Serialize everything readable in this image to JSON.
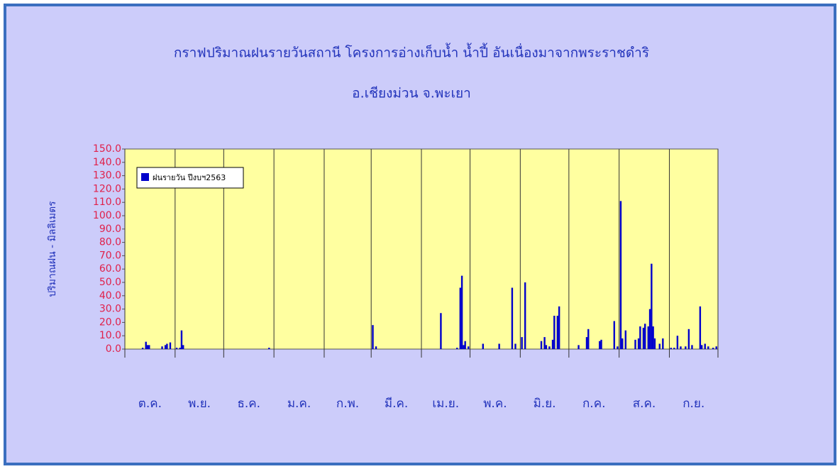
{
  "chart_data": {
    "type": "bar",
    "title": "กราฟปริมาณฝนรายวันสถานี โครงการอ่างเก็บน้ำ น้ำปี้ อันเนื่องมาจากพระราชดำริ",
    "subtitle": "อ.เชียงม่วน จ.พะเยา",
    "y_label": "ปริมาณฝน - มิลลิเมตร",
    "categories": [
      "ต.ค.",
      "พ.ย.",
      "ธ.ค.",
      "ม.ค.",
      "ก.พ.",
      "มี.ค.",
      "เม.ย.",
      "พ.ค.",
      "มิ.ย.",
      "ก.ค.",
      "ส.ค.",
      "ก.ย."
    ],
    "xlim": [
      0,
      366
    ],
    "xticks": [
      0,
      31,
      61,
      92,
      123,
      152,
      183,
      213,
      244,
      274,
      305,
      336,
      366
    ],
    "series": [
      {
        "name": "ฝนรายวัน ปีงบฯ2563",
        "color": "#0000cc",
        "x": [
          11,
          13,
          14,
          15,
          23,
          25,
          26,
          28,
          32,
          34,
          35,
          36,
          89,
          153,
          155,
          195,
          205,
          207,
          208,
          209,
          210,
          212,
          221,
          231,
          239,
          241,
          245,
          247,
          257,
          259,
          260,
          262,
          264,
          265,
          267,
          268,
          280,
          285,
          286,
          293,
          294,
          302,
          304,
          306,
          307,
          309,
          315,
          317,
          318,
          320,
          321,
          323,
          324,
          325,
          326,
          327,
          330,
          332,
          337,
          339,
          341,
          343,
          346,
          348,
          350,
          355,
          356,
          358,
          360,
          363,
          365
        ],
        "values": [
          1,
          5.5,
          3,
          3,
          2,
          3,
          4,
          5,
          1,
          1,
          14,
          3,
          1,
          18,
          2,
          27,
          1,
          46,
          55,
          3,
          6,
          2,
          4,
          4,
          46,
          4,
          9,
          50,
          6,
          9,
          3,
          2,
          7,
          25,
          25,
          32,
          3,
          9,
          15,
          6,
          7,
          21,
          2,
          111,
          8,
          14,
          7,
          8,
          17,
          16,
          19,
          17,
          30,
          64,
          17,
          8,
          4,
          8,
          1,
          1,
          10,
          2,
          2,
          15,
          3,
          32,
          3,
          4,
          2,
          1,
          2
        ]
      }
    ],
    "ylim": [
      0,
      150
    ],
    "yticks": [
      {
        "value": 0,
        "label": "0.0"
      },
      {
        "value": 10,
        "label": "10.0"
      },
      {
        "value": 20,
        "label": "20.0"
      },
      {
        "value": 30,
        "label": "30.0"
      },
      {
        "value": 40,
        "label": "40.0"
      },
      {
        "value": 50,
        "label": "50.0"
      },
      {
        "value": 60,
        "label": "60.0"
      },
      {
        "value": 70,
        "label": "70.0"
      },
      {
        "value": 80,
        "label": "80.0"
      },
      {
        "value": 90,
        "label": "90.0"
      },
      {
        "value": 100,
        "label": "100.0"
      },
      {
        "value": 110,
        "label": "110.0"
      },
      {
        "value": 120,
        "label": "120.0"
      },
      {
        "value": 130,
        "label": "130.0"
      },
      {
        "value": 140,
        "label": "140.0"
      },
      {
        "value": 150,
        "label": "150.0"
      }
    ],
    "legend": "upper left"
  }
}
